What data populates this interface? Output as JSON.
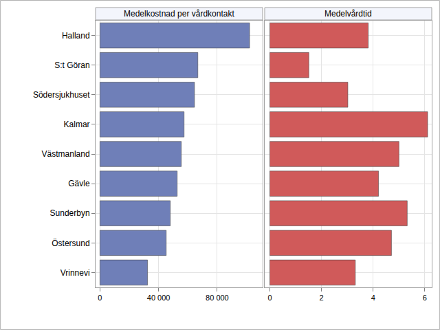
{
  "chart_data": [
    {
      "type": "bar",
      "title": "Medelkostnad per vårdkontakt",
      "orientation": "horizontal",
      "categories": [
        "Halland",
        "S:t Göran",
        "Södersjukhuset",
        "Kalmar",
        "Västmanland",
        "Gävle",
        "Sunderbyn",
        "Östersund",
        "Vrinnevi"
      ],
      "values": [
        102100,
        66800,
        64500,
        57400,
        55500,
        52700,
        48000,
        45200,
        32500
      ],
      "color": "#6f7fb8",
      "grid": true,
      "xlim": [
        -3000,
        111000
      ],
      "xticks": [
        0,
        {
          "value": 40000,
          "label": "40 000"
        },
        {
          "value": 80000,
          "label": "80 000"
        }
      ]
    },
    {
      "type": "bar",
      "title": "Medelvårdtid",
      "orientation": "horizontal",
      "categories": [
        "Halland",
        "S:t Göran",
        "Södersjukhuset",
        "Kalmar",
        "Västmanland",
        "Gävle",
        "Sunderbyn",
        "Östersund",
        "Vrinnevi"
      ],
      "values": [
        3.81,
        1.51,
        3.02,
        6.11,
        5.0,
        4.21,
        5.32,
        4.71,
        3.31
      ],
      "color": "#d05a5a",
      "grid": true,
      "tick_labels": "x",
      "xlim": [
        -0.2,
        6.27
      ],
      "xticks": [
        0,
        2,
        4,
        6
      ]
    }
  ]
}
